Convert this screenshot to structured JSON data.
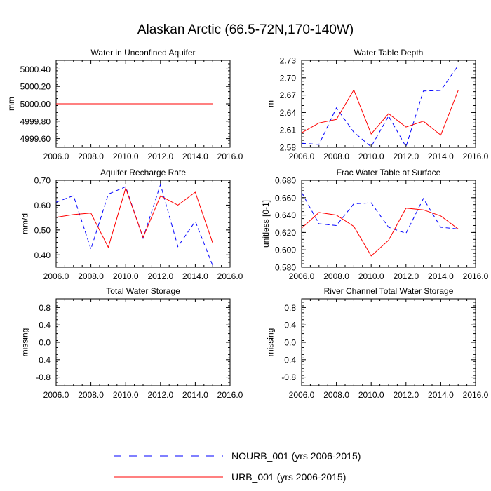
{
  "figure": {
    "title": "Alaskan Arctic (66.5-72N,170-140W)"
  },
  "legend": [
    {
      "label": "NOURB_001 (yrs 2006-2015)",
      "color": "#0000ff",
      "style": "dashed"
    },
    {
      "label": "URB_001 (yrs 2006-2015)",
      "color": "#ff0000",
      "style": "solid"
    }
  ],
  "chart_data": [
    {
      "type": "line",
      "title": "Water in Unconfined Aquifer",
      "ylabel": "mm",
      "xlim": [
        2006,
        2016
      ],
      "ylim": [
        4999.5,
        5000.5
      ],
      "xticks": [
        "2006.0",
        "2008.0",
        "2010.0",
        "2012.0",
        "2014.0",
        "2016.0"
      ],
      "yticks": [
        "5000.40",
        "5000.20",
        "5000.00",
        "4999.80",
        "4999.60"
      ],
      "ytick_values": [
        5000.4,
        5000.2,
        5000.0,
        4999.8,
        4999.6
      ],
      "x": [
        2006,
        2007,
        2008,
        2009,
        2010,
        2011,
        2012,
        2013,
        2014,
        2015
      ],
      "series": [
        {
          "name": "NOURB_001 (yrs 2006-2015)",
          "values": [
            5000,
            5000,
            5000,
            5000,
            5000,
            5000,
            5000,
            5000,
            5000,
            5000
          ]
        },
        {
          "name": "URB_001 (yrs 2006-2015)",
          "values": [
            5000,
            5000,
            5000,
            5000,
            5000,
            5000,
            5000,
            5000,
            5000,
            5000
          ]
        }
      ]
    },
    {
      "type": "line",
      "title": "Water Table Depth",
      "ylabel": "m",
      "xlim": [
        2006,
        2016
      ],
      "ylim": [
        2.58,
        2.73
      ],
      "xticks": [
        "2006.0",
        "2008.0",
        "2010.0",
        "2012.0",
        "2014.0",
        "2016.0"
      ],
      "yticks": [
        "2.73",
        "2.70",
        "2.67",
        "2.64",
        "2.61",
        "2.58"
      ],
      "ytick_values": [
        2.73,
        2.7,
        2.67,
        2.64,
        2.61,
        2.58
      ],
      "x": [
        2006,
        2007,
        2008,
        2009,
        2010,
        2011,
        2012,
        2013,
        2014,
        2015
      ],
      "series": [
        {
          "name": "NOURB_001 (yrs 2006-2015)",
          "values": [
            2.587,
            2.585,
            2.648,
            2.606,
            2.581,
            2.634,
            2.581,
            2.677,
            2.678,
            2.721
          ]
        },
        {
          "name": "URB_001 (yrs 2006-2015)",
          "values": [
            2.605,
            2.622,
            2.628,
            2.679,
            2.603,
            2.638,
            2.615,
            2.625,
            2.601,
            2.678
          ]
        }
      ]
    },
    {
      "type": "line",
      "title": "Aquifer Recharge Rate",
      "ylabel": "mm/d",
      "xlim": [
        2006,
        2016
      ],
      "ylim": [
        0.35,
        0.7
      ],
      "xticks": [
        "2006.0",
        "2008.0",
        "2010.0",
        "2012.0",
        "2014.0",
        "2016.0"
      ],
      "yticks": [
        "0.70",
        "0.60",
        "0.50",
        "0.40"
      ],
      "ytick_values": [
        0.7,
        0.6,
        0.5,
        0.4
      ],
      "x": [
        2006,
        2007,
        2008,
        2009,
        2010,
        2011,
        2012,
        2013,
        2014,
        2015
      ],
      "series": [
        {
          "name": "NOURB_001 (yrs 2006-2015)",
          "values": [
            0.612,
            0.638,
            0.423,
            0.644,
            0.674,
            0.467,
            0.683,
            0.433,
            0.535,
            0.357
          ]
        },
        {
          "name": "URB_001 (yrs 2006-2015)",
          "values": [
            0.551,
            0.562,
            0.568,
            0.43,
            0.668,
            0.47,
            0.637,
            0.6,
            0.652,
            0.448
          ]
        }
      ]
    },
    {
      "type": "line",
      "title": "Frac Water Table at Surface",
      "ylabel": "unitless [0-1]",
      "xlim": [
        2006,
        2016
      ],
      "ylim": [
        0.58,
        0.68
      ],
      "xticks": [
        "2006.0",
        "2008.0",
        "2010.0",
        "2012.0",
        "2014.0",
        "2016.0"
      ],
      "yticks": [
        "0.680",
        "0.660",
        "0.640",
        "0.620",
        "0.600",
        "0.580"
      ],
      "ytick_values": [
        0.68,
        0.66,
        0.64,
        0.62,
        0.6,
        0.58
      ],
      "x": [
        2006,
        2007,
        2008,
        2009,
        2010,
        2011,
        2012,
        2013,
        2014,
        2015
      ],
      "series": [
        {
          "name": "NOURB_001 (yrs 2006-2015)",
          "values": [
            0.666,
            0.63,
            0.628,
            0.653,
            0.654,
            0.626,
            0.619,
            0.659,
            0.626,
            0.624
          ]
        },
        {
          "name": "URB_001 (yrs 2006-2015)",
          "values": [
            0.625,
            0.643,
            0.64,
            0.627,
            0.593,
            0.611,
            0.648,
            0.646,
            0.639,
            0.624
          ]
        }
      ]
    },
    {
      "type": "line",
      "title": "Total Water Storage",
      "ylabel": "missing",
      "xlim": [
        2006,
        2016
      ],
      "ylim": [
        -1,
        1
      ],
      "xticks": [
        "2006.0",
        "2008.0",
        "2010.0",
        "2012.0",
        "2014.0",
        "2016.0"
      ],
      "yticks": [
        "0.8",
        "0.4",
        "0.0",
        "-0.4",
        "-0.8"
      ],
      "ytick_values": [
        0.8,
        0.4,
        0.0,
        -0.4,
        -0.8
      ],
      "x": [],
      "series": []
    },
    {
      "type": "line",
      "title": "River Channel Total Water Storage",
      "ylabel": "missing",
      "xlim": [
        2006,
        2016
      ],
      "ylim": [
        -1,
        1
      ],
      "xticks": [
        "2006.0",
        "2008.0",
        "2010.0",
        "2012.0",
        "2014.0",
        "2016.0"
      ],
      "yticks": [
        "0.8",
        "0.4",
        "0.0",
        "-0.4",
        "-0.8"
      ],
      "ytick_values": [
        0.8,
        0.4,
        0.0,
        -0.4,
        -0.8
      ],
      "x": [],
      "series": []
    }
  ]
}
